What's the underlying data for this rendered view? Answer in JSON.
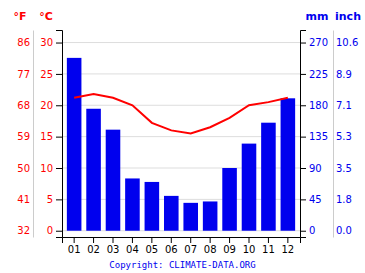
{
  "chart_data": {
    "type": "bar",
    "categories": [
      "01",
      "02",
      "03",
      "04",
      "05",
      "06",
      "07",
      "08",
      "09",
      "10",
      "11",
      "12"
    ],
    "series": [
      {
        "type": "bar",
        "axis": "y2",
        "color": "#0000ee",
        "values": [
          248,
          175,
          145,
          75,
          70,
          50,
          40,
          42,
          90,
          125,
          155,
          190
        ]
      },
      {
        "type": "line",
        "axis": "y",
        "color": "#ff0000",
        "values": [
          21.2,
          21.8,
          21.2,
          20.0,
          17.2,
          16.0,
          15.5,
          16.5,
          18.0,
          20.0,
          20.5,
          21.2
        ]
      }
    ],
    "ylabel": "°C",
    "ylim": [
      -1.0,
      32.0
    ],
    "yticks": [
      0,
      5,
      10,
      15,
      20,
      25,
      30
    ],
    "y_outer_label": "°F",
    "y_outer_ticks": [
      {
        "value": 0,
        "label": "32"
      },
      {
        "value": 5,
        "label": "41"
      },
      {
        "value": 10,
        "label": "50"
      },
      {
        "value": 15,
        "label": "59"
      },
      {
        "value": 20,
        "label": "68"
      },
      {
        "value": 25,
        "label": "77"
      },
      {
        "value": 30,
        "label": "86"
      }
    ],
    "y2label": "mm",
    "y2lim": [
      -9,
      288
    ],
    "y2ticks": [
      0,
      45,
      90,
      135,
      180,
      225,
      270
    ],
    "y2_outer_label": "inch",
    "y2_outer_ticks": [
      {
        "value": 0,
        "label": "0.0"
      },
      {
        "value": 45,
        "label": "1.8"
      },
      {
        "value": 90,
        "label": "3.5"
      },
      {
        "value": 135,
        "label": "5.3"
      },
      {
        "value": 180,
        "label": "7.1"
      },
      {
        "value": 225,
        "label": "8.9"
      },
      {
        "value": 270,
        "label": "10.6"
      }
    ],
    "annotation": "Copyright: CLIMATE-DATA.ORG",
    "grid": true
  }
}
